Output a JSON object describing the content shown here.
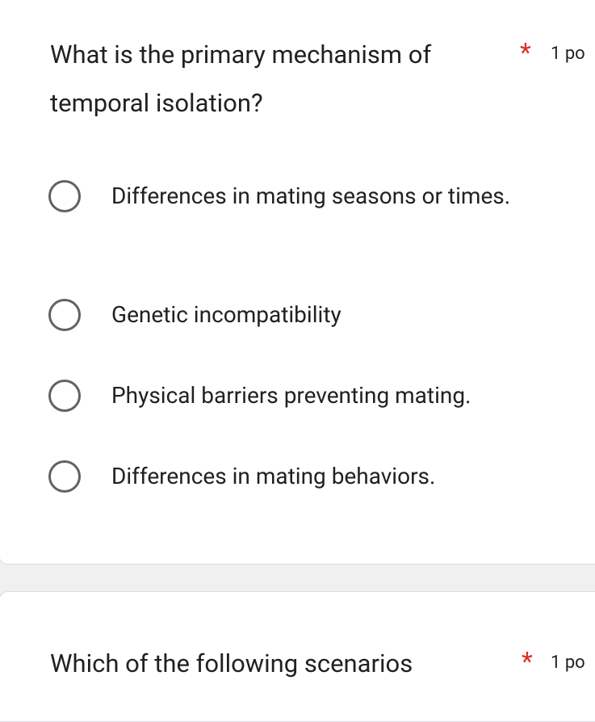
{
  "questions": [
    {
      "title": "What is the primary mechanism of temporal isolation?",
      "required": "*",
      "points": "1 po",
      "options": [
        "Differences in mating seasons or times.",
        "Genetic incompatibility",
        "Physical barriers preventing mating.",
        "Differences in mating behaviors."
      ]
    },
    {
      "title": "Which of the following scenarios",
      "required": "*",
      "points": "1 po"
    }
  ]
}
